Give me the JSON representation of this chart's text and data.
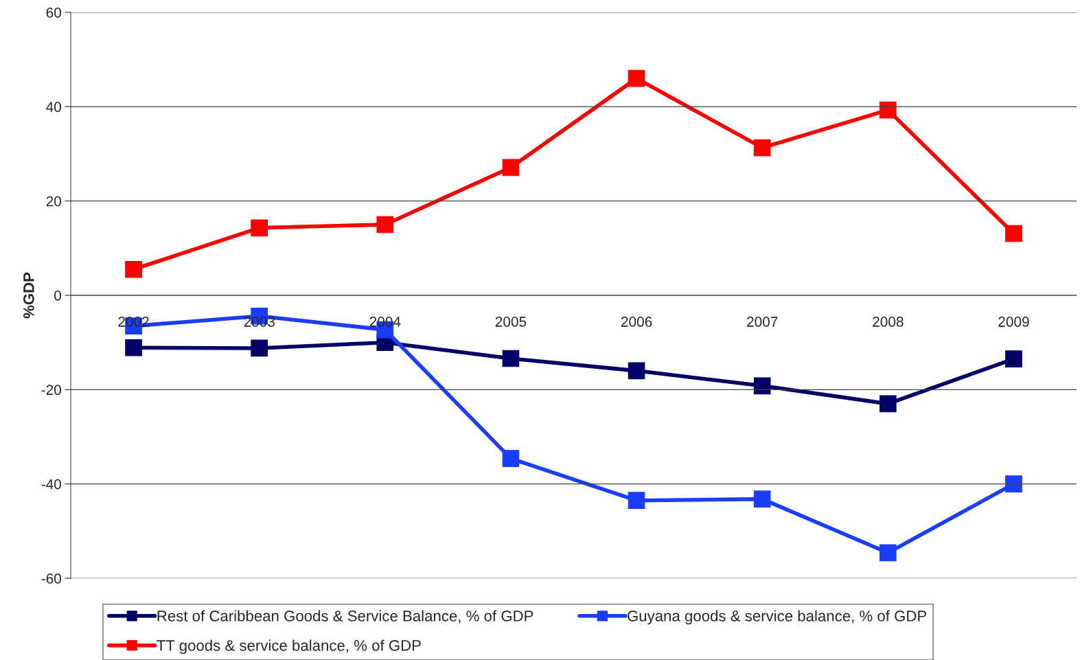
{
  "chart_data": {
    "type": "line",
    "ylabel": "%GDP",
    "categories": [
      "2002",
      "2003",
      "2004",
      "2005",
      "2006",
      "2007",
      "2008",
      "2009"
    ],
    "series": [
      {
        "name": "Rest of Caribbean Goods & Service Balance, % of GDP",
        "color": "#000066",
        "values": [
          -11.1,
          -11.2,
          -10.0,
          -13.4,
          -16.0,
          -19.2,
          -23.0,
          -13.5
        ]
      },
      {
        "name": "Guyana goods & service balance, % of GDP",
        "color": "#1a3cff",
        "values": [
          -6.5,
          -4.4,
          -7.3,
          -34.6,
          -43.5,
          -43.2,
          -54.6,
          -40.0
        ]
      },
      {
        "name": "TT goods & service balance, % of GDP",
        "color": "#ff0000",
        "values": [
          5.5,
          14.3,
          15.0,
          27.1,
          46.0,
          31.3,
          39.3,
          13.1
        ]
      }
    ],
    "ylim": [
      -60,
      60
    ],
    "yticks": [
      -60,
      -40,
      -20,
      0,
      20,
      40,
      60
    ],
    "grid": "y",
    "legend": "bottom",
    "marker": "square",
    "line_style": "solid"
  }
}
